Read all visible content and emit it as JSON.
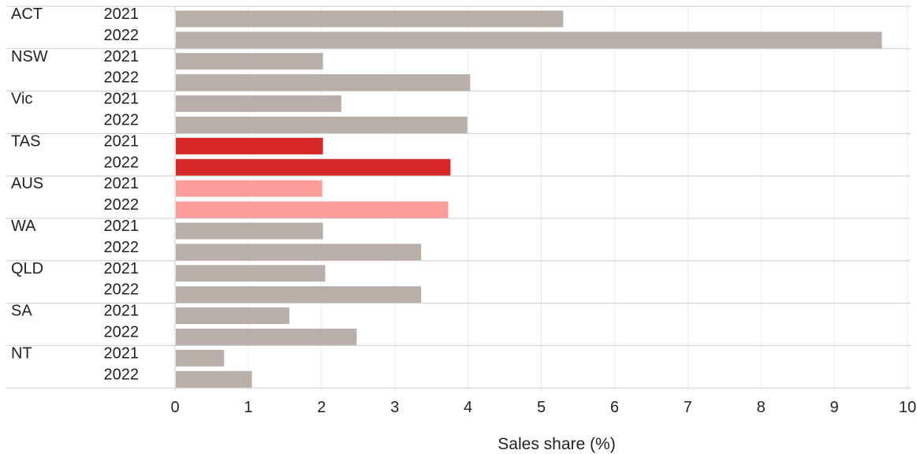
{
  "chart_data": {
    "type": "bar",
    "orientation": "horizontal",
    "xlabel": "Sales share (%)",
    "xlim": [
      0,
      10
    ],
    "xticks": [
      0,
      1,
      2,
      3,
      4,
      5,
      6,
      7,
      8,
      9,
      10
    ],
    "grid": true,
    "groups": [
      {
        "region": "ACT",
        "bars": [
          {
            "year": "2021",
            "value": 5.3,
            "color": "#b8aeaa"
          },
          {
            "year": "2022",
            "value": 9.65,
            "color": "#b8aeaa"
          }
        ]
      },
      {
        "region": "NSW",
        "bars": [
          {
            "year": "2021",
            "value": 2.02,
            "color": "#b8aeaa"
          },
          {
            "year": "2022",
            "value": 4.03,
            "color": "#b8aeaa"
          }
        ]
      },
      {
        "region": "Vic",
        "bars": [
          {
            "year": "2021",
            "value": 2.27,
            "color": "#b8aeaa"
          },
          {
            "year": "2022",
            "value": 3.99,
            "color": "#b8aeaa"
          }
        ]
      },
      {
        "region": "TAS",
        "bars": [
          {
            "year": "2021",
            "value": 2.02,
            "color": "#d7282a"
          },
          {
            "year": "2022",
            "value": 3.76,
            "color": "#d7282a"
          }
        ]
      },
      {
        "region": "AUS",
        "bars": [
          {
            "year": "2021",
            "value": 2.01,
            "color": "#fc9c9b"
          },
          {
            "year": "2022",
            "value": 3.73,
            "color": "#fc9c9b"
          }
        ]
      },
      {
        "region": "WA",
        "bars": [
          {
            "year": "2021",
            "value": 2.02,
            "color": "#b8aeaa"
          },
          {
            "year": "2022",
            "value": 3.36,
            "color": "#b8aeaa"
          }
        ]
      },
      {
        "region": "QLD",
        "bars": [
          {
            "year": "2021",
            "value": 2.05,
            "color": "#b8aeaa"
          },
          {
            "year": "2022",
            "value": 3.36,
            "color": "#b8aeaa"
          }
        ]
      },
      {
        "region": "SA",
        "bars": [
          {
            "year": "2021",
            "value": 1.56,
            "color": "#b8aeaa"
          },
          {
            "year": "2022",
            "value": 2.48,
            "color": "#b8aeaa"
          }
        ]
      },
      {
        "region": "NT",
        "bars": [
          {
            "year": "2021",
            "value": 0.67,
            "color": "#b8aeaa"
          },
          {
            "year": "2022",
            "value": 1.05,
            "color": "#b8aeaa"
          }
        ]
      }
    ]
  },
  "colors": {
    "default_bar": "#b8aeaa",
    "highlight_bar": "#d7282a",
    "national_bar": "#fc9c9b",
    "grid": "#ebebeb",
    "separator": "#cccccc"
  }
}
